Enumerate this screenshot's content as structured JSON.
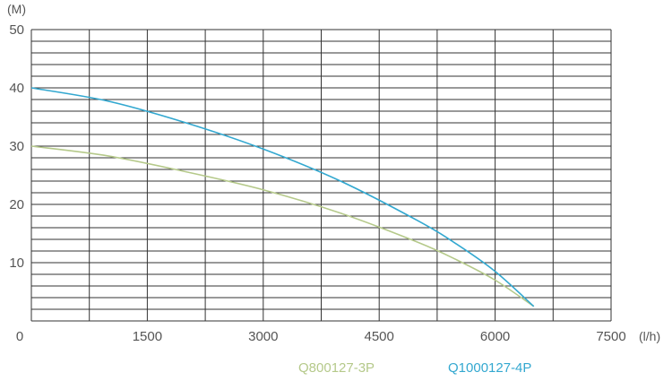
{
  "chart_data": {
    "type": "line",
    "title": "",
    "xlabel": "",
    "ylabel": "",
    "x_unit": "(l/h)",
    "y_unit": "(M)",
    "xlim": [
      0,
      7500
    ],
    "ylim": [
      0,
      50
    ],
    "x_tick_labels": [
      "0",
      "1500",
      "3000",
      "4500",
      "6000",
      "7500"
    ],
    "x_tick_values": [
      0,
      1500,
      3000,
      4500,
      6000,
      7500
    ],
    "y_tick_labels": [
      "10",
      "20",
      "30",
      "40",
      "50"
    ],
    "y_tick_values": [
      10,
      20,
      30,
      40,
      50
    ],
    "grid": true,
    "legend_position": "bottom-right",
    "series": [
      {
        "name": "Q800127-3P",
        "color": "#b5c98a",
        "x": [
          0,
          1000,
          2000,
          3000,
          4000,
          5000,
          5500,
          6000,
          6500
        ],
        "y": [
          30,
          28.3,
          25.6,
          22.5,
          18.5,
          13.5,
          10.5,
          7,
          2.5
        ]
      },
      {
        "name": "Q1000127-4P",
        "color": "#33a8d0",
        "x": [
          0,
          1000,
          2000,
          3000,
          4000,
          5000,
          5500,
          6000,
          6500
        ],
        "y": [
          40,
          37.7,
          34,
          29.5,
          24,
          17.2,
          13.2,
          8.5,
          2.5
        ]
      }
    ]
  }
}
